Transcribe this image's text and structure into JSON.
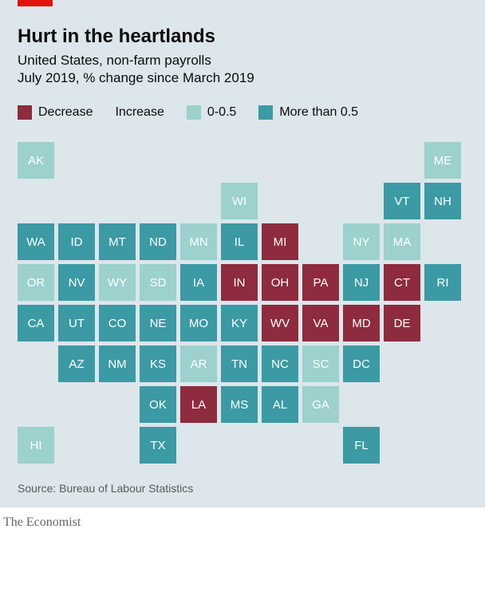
{
  "title": "Hurt in the heartlands",
  "subtitle1": "United States, non-farm payrolls",
  "subtitle2": "July 2019, % change since March 2019",
  "source": "Source: Bureau of Labour Statistics",
  "attribution": "The Economist",
  "background_color": "#dce6eb",
  "cellSize": 46,
  "cellGap": 5,
  "legend": {
    "decrease_label": "Decrease",
    "increase_label": "Increase",
    "low_label": "0-0.5",
    "high_label": "More than 0.5",
    "colors": {
      "decrease": "#8e2b3e",
      "low": "#9cd1cd",
      "high": "#3b9aa3"
    }
  },
  "states": [
    {
      "code": "AK",
      "row": 0,
      "col": 0,
      "cat": "low"
    },
    {
      "code": "ME",
      "row": 0,
      "col": 10,
      "cat": "low"
    },
    {
      "code": "WI",
      "row": 1,
      "col": 5,
      "cat": "low"
    },
    {
      "code": "VT",
      "row": 1,
      "col": 9,
      "cat": "high"
    },
    {
      "code": "NH",
      "row": 1,
      "col": 10,
      "cat": "high"
    },
    {
      "code": "WA",
      "row": 2,
      "col": 0,
      "cat": "high"
    },
    {
      "code": "ID",
      "row": 2,
      "col": 1,
      "cat": "high"
    },
    {
      "code": "MT",
      "row": 2,
      "col": 2,
      "cat": "high"
    },
    {
      "code": "ND",
      "row": 2,
      "col": 3,
      "cat": "high"
    },
    {
      "code": "MN",
      "row": 2,
      "col": 4,
      "cat": "low"
    },
    {
      "code": "IL",
      "row": 2,
      "col": 5,
      "cat": "high"
    },
    {
      "code": "MI",
      "row": 2,
      "col": 6,
      "cat": "decrease"
    },
    {
      "code": "NY",
      "row": 2,
      "col": 8,
      "cat": "low"
    },
    {
      "code": "MA",
      "row": 2,
      "col": 9,
      "cat": "low"
    },
    {
      "code": "OR",
      "row": 3,
      "col": 0,
      "cat": "low"
    },
    {
      "code": "NV",
      "row": 3,
      "col": 1,
      "cat": "high"
    },
    {
      "code": "WY",
      "row": 3,
      "col": 2,
      "cat": "low"
    },
    {
      "code": "SD",
      "row": 3,
      "col": 3,
      "cat": "low"
    },
    {
      "code": "IA",
      "row": 3,
      "col": 4,
      "cat": "high"
    },
    {
      "code": "IN",
      "row": 3,
      "col": 5,
      "cat": "decrease"
    },
    {
      "code": "OH",
      "row": 3,
      "col": 6,
      "cat": "decrease"
    },
    {
      "code": "PA",
      "row": 3,
      "col": 7,
      "cat": "decrease"
    },
    {
      "code": "NJ",
      "row": 3,
      "col": 8,
      "cat": "high"
    },
    {
      "code": "CT",
      "row": 3,
      "col": 9,
      "cat": "decrease"
    },
    {
      "code": "RI",
      "row": 3,
      "col": 10,
      "cat": "high"
    },
    {
      "code": "CA",
      "row": 4,
      "col": 0,
      "cat": "high"
    },
    {
      "code": "UT",
      "row": 4,
      "col": 1,
      "cat": "high"
    },
    {
      "code": "CO",
      "row": 4,
      "col": 2,
      "cat": "high"
    },
    {
      "code": "NE",
      "row": 4,
      "col": 3,
      "cat": "high"
    },
    {
      "code": "MO",
      "row": 4,
      "col": 4,
      "cat": "high"
    },
    {
      "code": "KY",
      "row": 4,
      "col": 5,
      "cat": "high"
    },
    {
      "code": "WV",
      "row": 4,
      "col": 6,
      "cat": "decrease"
    },
    {
      "code": "VA",
      "row": 4,
      "col": 7,
      "cat": "decrease"
    },
    {
      "code": "MD",
      "row": 4,
      "col": 8,
      "cat": "decrease"
    },
    {
      "code": "DE",
      "row": 4,
      "col": 9,
      "cat": "decrease"
    },
    {
      "code": "AZ",
      "row": 5,
      "col": 1,
      "cat": "high"
    },
    {
      "code": "NM",
      "row": 5,
      "col": 2,
      "cat": "high"
    },
    {
      "code": "KS",
      "row": 5,
      "col": 3,
      "cat": "high"
    },
    {
      "code": "AR",
      "row": 5,
      "col": 4,
      "cat": "low"
    },
    {
      "code": "TN",
      "row": 5,
      "col": 5,
      "cat": "high"
    },
    {
      "code": "NC",
      "row": 5,
      "col": 6,
      "cat": "high"
    },
    {
      "code": "SC",
      "row": 5,
      "col": 7,
      "cat": "low"
    },
    {
      "code": "DC",
      "row": 5,
      "col": 8,
      "cat": "high"
    },
    {
      "code": "OK",
      "row": 6,
      "col": 3,
      "cat": "high"
    },
    {
      "code": "LA",
      "row": 6,
      "col": 4,
      "cat": "decrease"
    },
    {
      "code": "MS",
      "row": 6,
      "col": 5,
      "cat": "high"
    },
    {
      "code": "AL",
      "row": 6,
      "col": 6,
      "cat": "high"
    },
    {
      "code": "GA",
      "row": 6,
      "col": 7,
      "cat": "low"
    },
    {
      "code": "HI",
      "row": 7,
      "col": 0,
      "cat": "low"
    },
    {
      "code": "TX",
      "row": 7,
      "col": 3,
      "cat": "high"
    },
    {
      "code": "FL",
      "row": 7,
      "col": 8,
      "cat": "high"
    }
  ]
}
